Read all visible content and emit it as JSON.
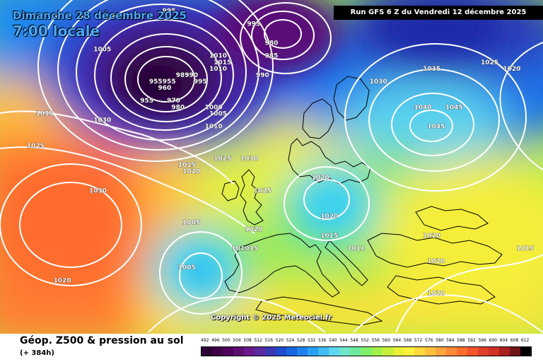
{
  "header": {
    "date_line": "Dimanche 28 décembre 2025",
    "time_line": "7:00 locale",
    "run_line": "Run GFS 6 Z du Vendredi 12 décembre 2025"
  },
  "copyright": "Copyright © 2025 Meteociel.fr",
  "footer": {
    "title": "Géop. Z500 & pression au sol",
    "lead_time": "(+ 384h)"
  },
  "legend": {
    "labels": [
      "492",
      "496",
      "500",
      "504",
      "508",
      "512",
      "516",
      "520",
      "524",
      "528",
      "532",
      "536",
      "540",
      "544",
      "548",
      "552",
      "556",
      "560",
      "564",
      "568",
      "572",
      "576",
      "580",
      "584",
      "588",
      "592",
      "596",
      "600",
      "604",
      "608",
      "612"
    ],
    "colors": [
      "#2b0033",
      "#3d0047",
      "#4f005c",
      "#5e1072",
      "#6a1a8a",
      "#5a2aa0",
      "#3a38b4",
      "#1f4ccc",
      "#1a66e0",
      "#1e82ee",
      "#2aa0f4",
      "#40bcf6",
      "#5cd6f0",
      "#6ee6c8",
      "#6aea9a",
      "#7ef06a",
      "#a2f048",
      "#c6f03c",
      "#e8f038",
      "#fff03a",
      "#ffd83a",
      "#ffc040",
      "#ffa43c",
      "#ff8836",
      "#ff6e30",
      "#f2542c",
      "#e0402a",
      "#cc3028",
      "#a82020",
      "#701414",
      "#000000"
    ]
  },
  "pressure_labels": [
    {
      "text": "1005",
      "lon": -37,
      "lat": 66
    },
    {
      "text": "995",
      "lon": -22,
      "lat": 72
    },
    {
      "text": "995",
      "lon": -3,
      "lat": 70
    },
    {
      "text": "980",
      "lon": 1,
      "lat": 67
    },
    {
      "text": "985",
      "lon": 1,
      "lat": 65
    },
    {
      "text": "990",
      "lon": -1,
      "lat": 62
    },
    {
      "text": "955",
      "lon": -25,
      "lat": 61
    },
    {
      "text": "960",
      "lon": -23,
      "lat": 60
    },
    {
      "text": "955",
      "lon": -27,
      "lat": 58
    },
    {
      "text": "955",
      "lon": -22,
      "lat": 61
    },
    {
      "text": "970",
      "lon": -21,
      "lat": 58
    },
    {
      "text": "980",
      "lon": -20,
      "lat": 57
    },
    {
      "text": "985",
      "lon": -19,
      "lat": 62
    },
    {
      "text": "990",
      "lon": -17,
      "lat": 62
    },
    {
      "text": "995",
      "lon": -15,
      "lat": 61
    },
    {
      "text": "1010",
      "lon": -11,
      "lat": 65
    },
    {
      "text": "1015",
      "lon": -10,
      "lat": 64
    },
    {
      "text": "1010",
      "lon": -11,
      "lat": 63
    },
    {
      "text": "1000",
      "lon": -12,
      "lat": 57
    },
    {
      "text": "1005",
      "lon": -11,
      "lat": 56
    },
    {
      "text": "1010",
      "lon": -12,
      "lat": 54
    },
    {
      "text": "1025",
      "lon": -10,
      "lat": 49
    },
    {
      "text": "1030",
      "lon": -4,
      "lat": 49
    },
    {
      "text": "1015",
      "lon": -18,
      "lat": 48
    },
    {
      "text": "1020",
      "lon": -17,
      "lat": 47
    },
    {
      "text": "1035",
      "lon": -50,
      "lat": 56
    },
    {
      "text": "1030",
      "lon": -37,
      "lat": 55
    },
    {
      "text": "1025",
      "lon": -52,
      "lat": 51
    },
    {
      "text": "1030",
      "lon": -38,
      "lat": 44
    },
    {
      "text": "1020",
      "lon": -46,
      "lat": 30
    },
    {
      "text": "1025",
      "lon": -1,
      "lat": 44
    },
    {
      "text": "1020",
      "lon": 12,
      "lat": 46
    },
    {
      "text": "1020",
      "lon": 14,
      "lat": 40
    },
    {
      "text": "1015",
      "lon": 14,
      "lat": 37
    },
    {
      "text": "1011",
      "lon": 20,
      "lat": 35
    },
    {
      "text": "1020",
      "lon": -3,
      "lat": 38
    },
    {
      "text": "1010",
      "lon": -6,
      "lat": 35
    },
    {
      "text": "1015",
      "lon": -4,
      "lat": 35
    },
    {
      "text": "1005",
      "lon": -17,
      "lat": 39
    },
    {
      "text": "1005",
      "lon": -18,
      "lat": 32
    },
    {
      "text": "1030",
      "lon": 25,
      "lat": 61
    },
    {
      "text": "1035",
      "lon": 37,
      "lat": 63
    },
    {
      "text": "1040",
      "lon": 35,
      "lat": 57
    },
    {
      "text": "1045",
      "lon": 42,
      "lat": 57
    },
    {
      "text": "1045",
      "lon": 38,
      "lat": 54
    },
    {
      "text": "1025",
      "lon": 50,
      "lat": 64
    },
    {
      "text": "1020",
      "lon": 55,
      "lat": 63
    },
    {
      "text": "1025",
      "lon": 55,
      "lat": 72
    },
    {
      "text": "1020",
      "lon": 37,
      "lat": 37
    },
    {
      "text": "1020",
      "lon": 38,
      "lat": 33
    },
    {
      "text": "1020",
      "lon": 38,
      "lat": 28
    },
    {
      "text": "1015",
      "lon": 58,
      "lat": 35
    }
  ]
}
